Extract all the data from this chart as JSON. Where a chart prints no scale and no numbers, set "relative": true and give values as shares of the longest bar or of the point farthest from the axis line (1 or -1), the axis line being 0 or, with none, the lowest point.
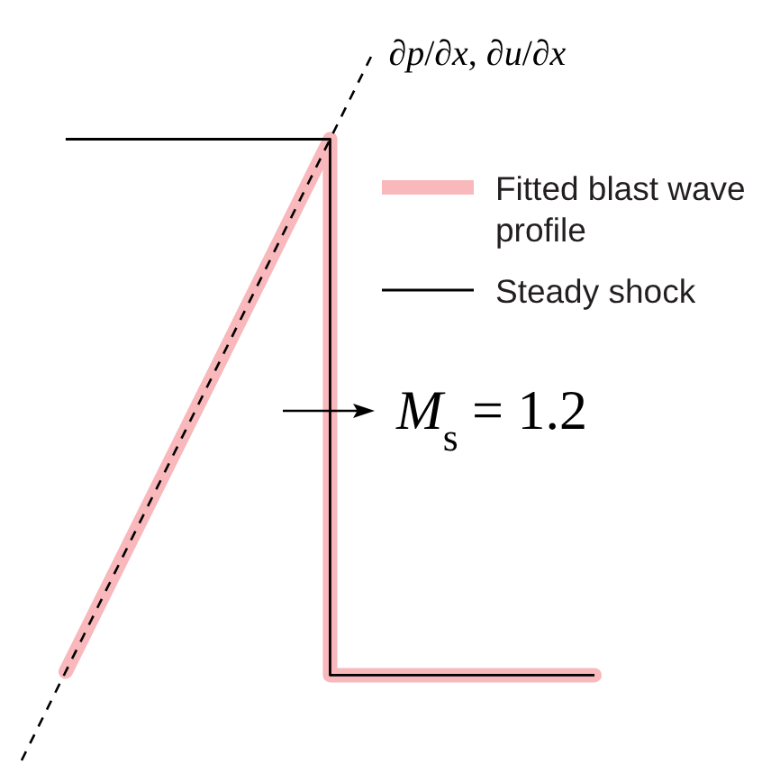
{
  "chart_data": {
    "type": "line",
    "relative": true,
    "legend": "top right",
    "categories": [
      null,
      null,
      null,
      null,
      null,
      null,
      null,
      null,
      null,
      null,
      null,
      null,
      null,
      null
    ],
    "series": [
      {
        "name": "Fitted blast wave profile",
        "color": "#f8b8bc",
        "values": [
          null,
          0.125,
          0.25,
          0.375,
          0.5,
          0.625,
          0.75,
          0.875,
          null,
          null,
          null,
          null,
          null,
          null
        ]
      },
      {
        "type": "step",
        "color": "#f8b8bc",
        "values": [
          null,
          null,
          null,
          null,
          null,
          null,
          null,
          0.875,
          0.12,
          0.12,
          0.12,
          0.12,
          0.12,
          0.12
        ]
      },
      {
        "type": "step",
        "name": "Steady shock",
        "color": "#000000",
        "values": [
          null,
          0.875,
          0.875,
          0.875,
          0.875,
          0.875,
          0.875,
          0.875,
          0.12,
          0.12,
          0.12,
          0.12,
          0.12,
          0.12
        ]
      },
      {
        "name": "∂p/∂x, ∂u/∂x",
        "color": "#000000",
        "line_style": "dashed",
        "values": [
          0,
          0.125,
          0.25,
          0.375,
          0.5,
          0.625,
          0.75,
          0.875,
          1,
          null,
          null,
          null,
          null,
          null
        ]
      }
    ],
    "annotations": [
      "M$_{s}$ = 1.2"
    ]
  }
}
